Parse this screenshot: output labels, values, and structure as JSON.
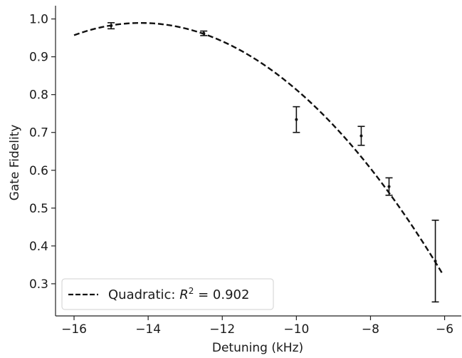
{
  "chart_data": {
    "type": "scatter",
    "title": "",
    "xlabel": "Detuning (kHz)",
    "ylabel": "Gate Fidelity",
    "xlim": [
      -16.5,
      -5.55
    ],
    "ylim": [
      0.215,
      1.035
    ],
    "grid": false,
    "legend_position": "bottom-left",
    "x_ticks": [
      -16,
      -14,
      -12,
      -10,
      -8,
      -6
    ],
    "x_tick_labels": [
      "−16",
      "−14",
      "−12",
      "−10",
      "−8",
      "−6"
    ],
    "y_ticks": [
      0.3,
      0.4,
      0.5,
      0.6,
      0.7,
      0.8,
      0.9,
      1.0
    ],
    "y_tick_labels": [
      "0.3",
      "0.4",
      "0.5",
      "0.6",
      "0.7",
      "0.8",
      "0.9",
      "1.0"
    ],
    "points": {
      "x": [
        -15.0,
        -12.5,
        -10.0,
        -8.25,
        -7.5,
        -6.25
      ],
      "y": [
        0.982,
        0.962,
        0.734,
        0.691,
        0.557,
        0.36
      ],
      "err": [
        0.008,
        0.006,
        0.034,
        0.025,
        0.023,
        0.108
      ],
      "color": "#111111"
    },
    "series": [
      {
        "name_prefix": "Quadratic: ",
        "name_r2": "R",
        "name_exponent": "2",
        "name_value": " = 0.902",
        "style": "dashed",
        "color": "#111111",
        "x_range": [
          -16.0,
          -6.05
        ],
        "coefficients": [
          -0.01,
          -0.284,
          -1.027
        ]
      }
    ]
  }
}
